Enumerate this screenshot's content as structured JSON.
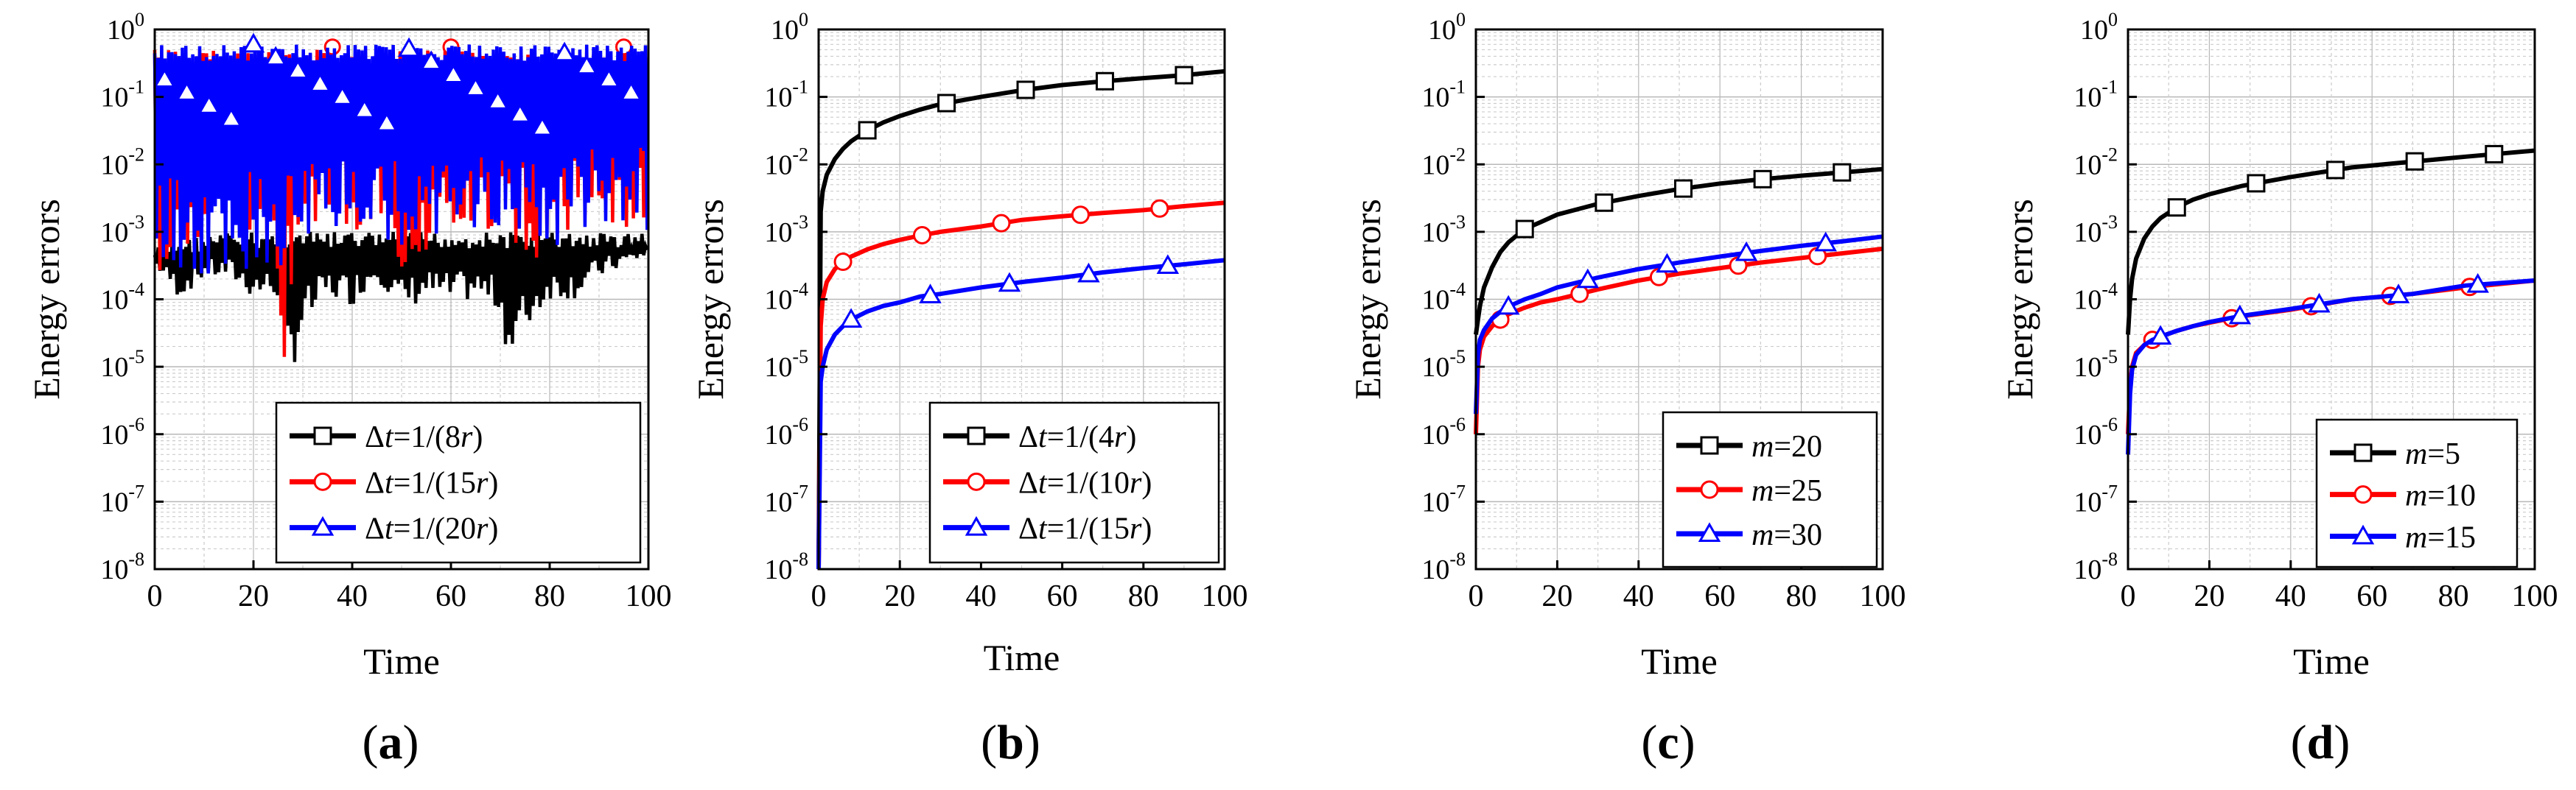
{
  "figure": {
    "panels": [
      {
        "label": "(a)",
        "xlabel": "Time",
        "ylabel": "Energy errors",
        "chart_type": "line",
        "x_ticks": [
          "0",
          "20",
          "40",
          "60",
          "80",
          "100"
        ],
        "legend": [
          {
            "name_prefix": "Δ",
            "name_italic": "t",
            "name_suffix": "=1/(8",
            "name_italic2": "r",
            "name_end": ")",
            "color": "#000000",
            "marker": "square"
          },
          {
            "name_prefix": "Δ",
            "name_italic": "t",
            "name_suffix": "=1/(15",
            "name_italic2": "r",
            "name_end": ")",
            "color": "#ff0000",
            "marker": "circle"
          },
          {
            "name_prefix": "Δ",
            "name_italic": "t",
            "name_suffix": "=1/(20",
            "name_italic2": "r",
            "name_end": ")",
            "color": "#0000ff",
            "marker": "triangle"
          }
        ]
      },
      {
        "label": "(b)",
        "xlabel": "Time",
        "ylabel": "Energy errors",
        "chart_type": "line",
        "x_ticks": [
          "0",
          "20",
          "40",
          "60",
          "80",
          "100"
        ],
        "legend": [
          {
            "name_prefix": "Δ",
            "name_italic": "t",
            "name_suffix": "=1/(4",
            "name_italic2": "r",
            "name_end": ")",
            "color": "#000000",
            "marker": "square"
          },
          {
            "name_prefix": "Δ",
            "name_italic": "t",
            "name_suffix": "=1/(10",
            "name_italic2": "r",
            "name_end": ")",
            "color": "#ff0000",
            "marker": "circle"
          },
          {
            "name_prefix": "Δ",
            "name_italic": "t",
            "name_suffix": "=1/(15",
            "name_italic2": "r",
            "name_end": ")",
            "color": "#0000ff",
            "marker": "triangle"
          }
        ]
      },
      {
        "label": "(c)",
        "xlabel": "Time",
        "ylabel": "Energy errors",
        "chart_type": "line",
        "x_ticks": [
          "0",
          "20",
          "40",
          "60",
          "80",
          "100"
        ],
        "legend": [
          {
            "name_prefix": "",
            "name_italic": "m",
            "name_suffix": "=20",
            "name_italic2": "",
            "name_end": "",
            "color": "#000000",
            "marker": "square"
          },
          {
            "name_prefix": "",
            "name_italic": "m",
            "name_suffix": "=25",
            "name_italic2": "",
            "name_end": "",
            "color": "#ff0000",
            "marker": "circle"
          },
          {
            "name_prefix": "",
            "name_italic": "m",
            "name_suffix": "=30",
            "name_italic2": "",
            "name_end": "",
            "color": "#0000ff",
            "marker": "triangle"
          }
        ]
      },
      {
        "label": "(d)",
        "xlabel": "Time",
        "ylabel": "Energy errors",
        "chart_type": "line",
        "x_ticks": [
          "0",
          "20",
          "40",
          "60",
          "80",
          "100"
        ],
        "legend": [
          {
            "name_prefix": "",
            "name_italic": "m",
            "name_suffix": "=5",
            "name_italic2": "",
            "name_end": "",
            "color": "#000000",
            "marker": "square"
          },
          {
            "name_prefix": "",
            "name_italic": "m",
            "name_suffix": "=10",
            "name_italic2": "",
            "name_end": "",
            "color": "#ff0000",
            "marker": "circle"
          },
          {
            "name_prefix": "",
            "name_italic": "m",
            "name_suffix": "=15",
            "name_italic2": "",
            "name_end": "",
            "color": "#0000ff",
            "marker": "triangle"
          }
        ]
      }
    ],
    "y_ticks": [
      {
        "base": "10",
        "exp": "0"
      },
      {
        "base": "10",
        "exp": "-1"
      },
      {
        "base": "10",
        "exp": "-2"
      },
      {
        "base": "10",
        "exp": "-3"
      },
      {
        "base": "10",
        "exp": "-4"
      },
      {
        "base": "10",
        "exp": "-5"
      },
      {
        "base": "10",
        "exp": "-6"
      },
      {
        "base": "10",
        "exp": "-7"
      },
      {
        "base": "10",
        "exp": "-8"
      }
    ]
  },
  "chart_data": [
    {
      "type": "line",
      "xlabel": "Time",
      "ylabel": "Energy errors",
      "xlim": [
        0,
        100
      ],
      "ylim": [
        1e-08,
        1
      ],
      "yscale": "log",
      "grid": true,
      "legend_position": "bottom-right",
      "series": [
        {
          "name": "Δt=1/(8r)",
          "color": "#000000",
          "marker": "square",
          "style": "oscillating",
          "x": [
            0,
            5,
            10,
            15,
            20,
            25,
            27,
            30,
            35,
            40,
            45,
            50,
            55,
            60,
            65,
            70,
            72,
            75,
            80,
            85,
            90,
            95,
            100
          ],
          "y_upper": [
            0.0006,
            0.0008,
            0.0009,
            0.001,
            0.001,
            0.001,
            0.001,
            0.001,
            0.001,
            0.001,
            0.001,
            0.001,
            0.001,
            0.001,
            0.001,
            0.001,
            0.001,
            0.001,
            0.001,
            0.001,
            0.001,
            0.001,
            0.001
          ],
          "y_lower": [
            0.0003,
            0.0001,
            0.0002,
            0.0002,
            0.0001,
            0.0001,
            5e-06,
            3e-05,
            0.0001,
            8e-05,
            0.0002,
            6e-05,
            0.0001,
            8e-05,
            0.0001,
            6e-05,
            8e-06,
            3e-05,
            0.0001,
            0.0001,
            0.0002,
            0.0003,
            0.0004
          ]
        },
        {
          "name": "Δt=1/(15r)",
          "color": "#ff0000",
          "marker": "circle",
          "style": "oscillating",
          "x": [
            0,
            10,
            20,
            25,
            26,
            30,
            40,
            50,
            60,
            70,
            80,
            90,
            100
          ],
          "y_upper": [
            0.5,
            0.5,
            0.5,
            0.5,
            0.5,
            0.5,
            0.5,
            0.5,
            0.5,
            0.5,
            0.5,
            0.5,
            0.5
          ],
          "y_lower": [
            0.0002,
            0.001,
            0.001,
            1e-05,
            7e-06,
            0.001,
            0.001,
            0.0003,
            0.001,
            0.001,
            0.0003,
            0.001,
            0.001
          ]
        },
        {
          "name": "Δt=1/(20r)",
          "color": "#0000ff",
          "marker": "triangle",
          "style": "oscillating",
          "x": [
            0,
            10,
            20,
            30,
            40,
            50,
            60,
            70,
            80,
            90,
            100
          ],
          "y_upper": [
            0.6,
            0.6,
            0.6,
            0.6,
            0.6,
            0.6,
            0.6,
            0.6,
            0.6,
            0.6,
            0.6
          ],
          "y_lower": [
            0.0003,
            0.0001,
            0.0003,
            0.0003,
            0.001,
            0.0005,
            0.001,
            0.001,
            0.0005,
            0.001,
            0.001
          ]
        }
      ]
    },
    {
      "type": "line",
      "xlabel": "Time",
      "ylabel": "Energy errors",
      "xlim": [
        0,
        100
      ],
      "ylim": [
        1e-08,
        1
      ],
      "yscale": "log",
      "grid": true,
      "legend_position": "bottom-right",
      "series": [
        {
          "name": "Δt=1/(4r)",
          "color": "#000000",
          "marker": "square",
          "x": [
            0,
            0.5,
            1,
            2,
            4,
            6,
            8,
            12,
            16,
            20,
            25,
            30,
            40,
            50,
            60,
            70,
            80,
            90,
            100
          ],
          "y": [
            1e-08,
            0.002,
            0.004,
            0.007,
            0.012,
            0.017,
            0.022,
            0.032,
            0.042,
            0.052,
            0.065,
            0.078,
            0.1,
            0.125,
            0.15,
            0.17,
            0.19,
            0.21,
            0.24
          ]
        },
        {
          "name": "Δt=1/(10r)",
          "color": "#ff0000",
          "marker": "circle",
          "x": [
            0,
            0.5,
            1,
            2,
            4,
            6,
            8,
            12,
            16,
            20,
            25,
            30,
            40,
            50,
            60,
            70,
            80,
            90,
            100
          ],
          "y": [
            1e-08,
            4e-05,
            0.0001,
            0.00018,
            0.00028,
            0.00036,
            0.00043,
            0.00055,
            0.00066,
            0.00076,
            0.00088,
            0.001,
            0.0012,
            0.0015,
            0.0017,
            0.0019,
            0.0021,
            0.0024,
            0.0027
          ]
        },
        {
          "name": "Δt=1/(15r)",
          "color": "#0000ff",
          "marker": "triangle",
          "x": [
            0,
            0.5,
            1,
            2,
            4,
            6,
            8,
            12,
            16,
            20,
            25,
            30,
            40,
            50,
            60,
            70,
            80,
            90,
            100
          ],
          "y": [
            1e-08,
            6e-06,
            1e-05,
            1.8e-05,
            3e-05,
            4e-05,
            5e-05,
            6.6e-05,
            8e-05,
            9e-05,
            0.00011,
            0.00012,
            0.00015,
            0.00018,
            0.00021,
            0.00025,
            0.00029,
            0.00033,
            0.00038
          ]
        }
      ]
    },
    {
      "type": "line",
      "xlabel": "Time",
      "ylabel": "Energy errors",
      "xlim": [
        0,
        100
      ],
      "ylim": [
        1e-08,
        1
      ],
      "yscale": "log",
      "grid": true,
      "legend_position": "bottom-right",
      "series": [
        {
          "name": "m=20",
          "color": "#000000",
          "marker": "square",
          "x": [
            0,
            0.5,
            1,
            2,
            4,
            6,
            8,
            12,
            16,
            20,
            30,
            40,
            50,
            60,
            70,
            80,
            90,
            100
          ],
          "y": [
            3e-05,
            5e-05,
            8e-05,
            0.00015,
            0.0003,
            0.0005,
            0.0007,
            0.0011,
            0.0014,
            0.0018,
            0.0026,
            0.0034,
            0.0043,
            0.0052,
            0.006,
            0.0068,
            0.0076,
            0.0085
          ]
        },
        {
          "name": "m=25",
          "color": "#ff0000",
          "marker": "circle",
          "x": [
            0,
            0.5,
            1,
            2,
            4,
            6,
            8,
            12,
            16,
            20,
            30,
            40,
            50,
            60,
            70,
            80,
            90,
            100
          ],
          "y": [
            1e-06,
            1e-05,
            1.8e-05,
            2.8e-05,
            4e-05,
            5e-05,
            6e-05,
            7.5e-05,
            9e-05,
            0.0001,
            0.00014,
            0.00019,
            0.00024,
            0.00029,
            0.00035,
            0.00041,
            0.00048,
            0.00056
          ]
        },
        {
          "name": "m=30",
          "color": "#0000ff",
          "marker": "triangle",
          "x": [
            0,
            0.5,
            1,
            2,
            4,
            6,
            8,
            12,
            16,
            20,
            30,
            40,
            50,
            60,
            70,
            80,
            90,
            100
          ],
          "y": [
            2e-06,
            1.5e-05,
            2.5e-05,
            3.5e-05,
            5.2e-05,
            6.5e-05,
            7.8e-05,
            0.0001,
            0.00012,
            0.00015,
            0.00021,
            0.00028,
            0.00035,
            0.00043,
            0.00052,
            0.00062,
            0.00072,
            0.00085
          ]
        }
      ]
    },
    {
      "type": "line",
      "xlabel": "Time",
      "ylabel": "Energy errors",
      "xlim": [
        0,
        100
      ],
      "ylim": [
        1e-08,
        1
      ],
      "yscale": "log",
      "grid": true,
      "legend_position": "bottom-left",
      "series": [
        {
          "name": "m=5",
          "color": "#000000",
          "marker": "square",
          "x": [
            0,
            0.5,
            1,
            2,
            4,
            6,
            8,
            12,
            16,
            20,
            28,
            40,
            55,
            70,
            83,
            100
          ],
          "y": [
            3e-05,
            0.0001,
            0.0002,
            0.0004,
            0.0008,
            0.0012,
            0.0016,
            0.0023,
            0.003,
            0.0036,
            0.0048,
            0.0065,
            0.009,
            0.011,
            0.013,
            0.016
          ]
        },
        {
          "name": "m=10",
          "color": "#ff0000",
          "marker": "circle",
          "x": [
            0,
            0.5,
            1,
            2,
            4,
            6,
            8,
            12,
            16,
            20,
            28,
            40,
            55,
            70,
            83,
            100
          ],
          "y": [
            1e-06,
            5e-06,
            1e-05,
            1.6e-05,
            2.1e-05,
            2.5e-05,
            2.8e-05,
            3.4e-05,
            4e-05,
            4.5e-05,
            5.6e-05,
            7e-05,
            0.0001,
            0.00012,
            0.00015,
            0.00019
          ]
        },
        {
          "name": "m=15",
          "color": "#0000ff",
          "marker": "triangle",
          "x": [
            0,
            0.5,
            1,
            2,
            4,
            6,
            8,
            12,
            16,
            20,
            28,
            40,
            55,
            70,
            83,
            100
          ],
          "y": [
            5e-07,
            4e-06,
            9e-06,
            1.5e-05,
            2.1e-05,
            2.5e-05,
            2.8e-05,
            3.4e-05,
            4e-05,
            4.6e-05,
            5.7e-05,
            7.2e-05,
            0.0001,
            0.00012,
            0.00016,
            0.00019
          ]
        }
      ]
    }
  ]
}
